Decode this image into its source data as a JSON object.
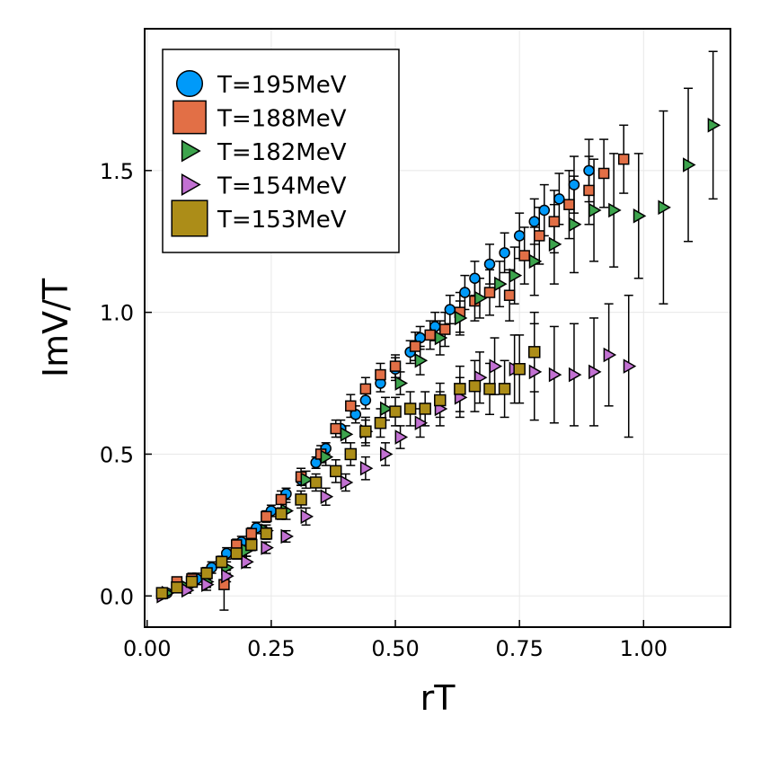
{
  "chart_data": {
    "type": "scatter",
    "title": "",
    "xlabel": "rT",
    "ylabel": "ImV/T",
    "xlim": [
      -0.005,
      1.175
    ],
    "ylim": [
      -0.11,
      2.0
    ],
    "xticks": [
      0.0,
      0.25,
      0.5,
      0.75,
      1.0
    ],
    "xtick_labels": [
      "0.00",
      "0.25",
      "0.50",
      "0.75",
      "1.00"
    ],
    "yticks": [
      0.0,
      0.5,
      1.0,
      1.5
    ],
    "ytick_labels": [
      "0.0",
      "0.5",
      "1.0",
      "1.5"
    ],
    "grid": true,
    "legend_position": "top-left",
    "series": [
      {
        "name": "T=195MeV",
        "color": "#009af9",
        "marker": "circle",
        "x": [
          0.04,
          0.07,
          0.1,
          0.13,
          0.16,
          0.19,
          0.22,
          0.25,
          0.28,
          0.31,
          0.34,
          0.36,
          0.39,
          0.42,
          0.44,
          0.47,
          0.5,
          0.53,
          0.55,
          0.58,
          0.61,
          0.64,
          0.66,
          0.69,
          0.72,
          0.75,
          0.78,
          0.8,
          0.83,
          0.86,
          0.89
        ],
        "y": [
          0.01,
          0.03,
          0.06,
          0.1,
          0.15,
          0.19,
          0.24,
          0.3,
          0.36,
          0.41,
          0.47,
          0.52,
          0.59,
          0.64,
          0.69,
          0.75,
          0.8,
          0.86,
          0.91,
          0.95,
          1.01,
          1.07,
          1.12,
          1.17,
          1.21,
          1.27,
          1.32,
          1.36,
          1.4,
          1.45,
          1.5
        ],
        "err": [
          0.01,
          0.01,
          0.02,
          0.02,
          0.02,
          0.02,
          0.02,
          0.02,
          0.02,
          0.02,
          0.02,
          0.02,
          0.03,
          0.03,
          0.03,
          0.03,
          0.04,
          0.04,
          0.04,
          0.05,
          0.05,
          0.06,
          0.06,
          0.07,
          0.07,
          0.08,
          0.08,
          0.09,
          0.09,
          0.1,
          0.11
        ]
      },
      {
        "name": "T=188MeV",
        "color": "#e26f46",
        "marker": "square",
        "x": [
          0.03,
          0.06,
          0.09,
          0.12,
          0.155,
          0.18,
          0.21,
          0.24,
          0.27,
          0.31,
          0.35,
          0.38,
          0.41,
          0.44,
          0.47,
          0.5,
          0.54,
          0.57,
          0.6,
          0.63,
          0.66,
          0.69,
          0.73,
          0.76,
          0.79,
          0.82,
          0.85,
          0.89,
          0.92,
          0.96
        ],
        "y": [
          0.01,
          0.05,
          0.06,
          0.08,
          0.04,
          0.18,
          0.22,
          0.28,
          0.34,
          0.42,
          0.5,
          0.59,
          0.67,
          0.73,
          0.78,
          0.81,
          0.88,
          0.92,
          0.94,
          1.0,
          1.04,
          1.07,
          1.06,
          1.2,
          1.27,
          1.32,
          1.38,
          1.43,
          1.49,
          1.54
        ],
        "err": [
          0.01,
          0.01,
          0.02,
          0.02,
          0.09,
          0.02,
          0.02,
          0.02,
          0.03,
          0.03,
          0.03,
          0.03,
          0.04,
          0.04,
          0.04,
          0.04,
          0.05,
          0.05,
          0.06,
          0.07,
          0.07,
          0.08,
          0.09,
          0.1,
          0.1,
          0.11,
          0.12,
          0.12,
          0.12,
          0.12
        ]
      },
      {
        "name": "T=182MeV",
        "color": "#3da44d",
        "marker": "triangle-right",
        "x": [
          0.04,
          0.08,
          0.12,
          0.16,
          0.2,
          0.24,
          0.28,
          0.32,
          0.36,
          0.4,
          0.44,
          0.48,
          0.51,
          0.55,
          0.59,
          0.63,
          0.67,
          0.71,
          0.74,
          0.78,
          0.82,
          0.86,
          0.9,
          0.94,
          0.99,
          1.04,
          1.09,
          1.14
        ],
        "y": [
          0.01,
          0.03,
          0.05,
          0.1,
          0.16,
          0.23,
          0.3,
          0.41,
          0.49,
          0.57,
          0.58,
          0.66,
          0.75,
          0.83,
          0.91,
          0.98,
          1.05,
          1.1,
          1.13,
          1.18,
          1.24,
          1.31,
          1.36,
          1.36,
          1.34,
          1.37,
          1.52,
          1.66
        ],
        "err": [
          0.01,
          0.01,
          0.02,
          0.02,
          0.02,
          0.02,
          0.03,
          0.03,
          0.03,
          0.03,
          0.04,
          0.04,
          0.04,
          0.05,
          0.06,
          0.06,
          0.07,
          0.08,
          0.1,
          0.12,
          0.14,
          0.17,
          0.18,
          0.2,
          0.22,
          0.34,
          0.27,
          0.26
        ]
      },
      {
        "name": "T=154MeV",
        "color": "#c271d2",
        "marker": "triangle-right",
        "x": [
          0.03,
          0.08,
          0.12,
          0.16,
          0.2,
          0.24,
          0.28,
          0.32,
          0.36,
          0.4,
          0.44,
          0.48,
          0.51,
          0.55,
          0.59,
          0.63,
          0.67,
          0.7,
          0.74,
          0.78,
          0.82,
          0.86,
          0.9,
          0.93,
          0.97
        ],
        "y": [
          0.0,
          0.02,
          0.04,
          0.07,
          0.12,
          0.17,
          0.21,
          0.28,
          0.35,
          0.4,
          0.45,
          0.5,
          0.56,
          0.61,
          0.66,
          0.7,
          0.77,
          0.81,
          0.8,
          0.79,
          0.78,
          0.78,
          0.79,
          0.85,
          0.81
        ],
        "err": [
          0.01,
          0.01,
          0.02,
          0.02,
          0.02,
          0.02,
          0.02,
          0.03,
          0.03,
          0.03,
          0.04,
          0.04,
          0.04,
          0.05,
          0.06,
          0.07,
          0.09,
          0.1,
          0.12,
          0.17,
          0.17,
          0.18,
          0.19,
          0.18,
          0.25
        ]
      },
      {
        "name": "T=153MeV",
        "color": "#ac8d18",
        "marker": "square-large",
        "x": [
          0.03,
          0.06,
          0.09,
          0.12,
          0.15,
          0.18,
          0.21,
          0.24,
          0.27,
          0.31,
          0.34,
          0.38,
          0.41,
          0.44,
          0.47,
          0.5,
          0.53,
          0.56,
          0.59,
          0.63,
          0.66,
          0.69,
          0.72,
          0.75,
          0.78
        ],
        "y": [
          0.01,
          0.03,
          0.05,
          0.08,
          0.12,
          0.15,
          0.18,
          0.22,
          0.29,
          0.34,
          0.4,
          0.44,
          0.5,
          0.58,
          0.61,
          0.65,
          0.66,
          0.66,
          0.69,
          0.73,
          0.74,
          0.73,
          0.73,
          0.8,
          0.86
        ],
        "err": [
          0.01,
          0.01,
          0.01,
          0.02,
          0.02,
          0.02,
          0.02,
          0.02,
          0.02,
          0.03,
          0.03,
          0.04,
          0.04,
          0.05,
          0.05,
          0.05,
          0.06,
          0.06,
          0.06,
          0.08,
          0.09,
          0.09,
          0.1,
          0.12,
          0.14
        ]
      }
    ]
  }
}
